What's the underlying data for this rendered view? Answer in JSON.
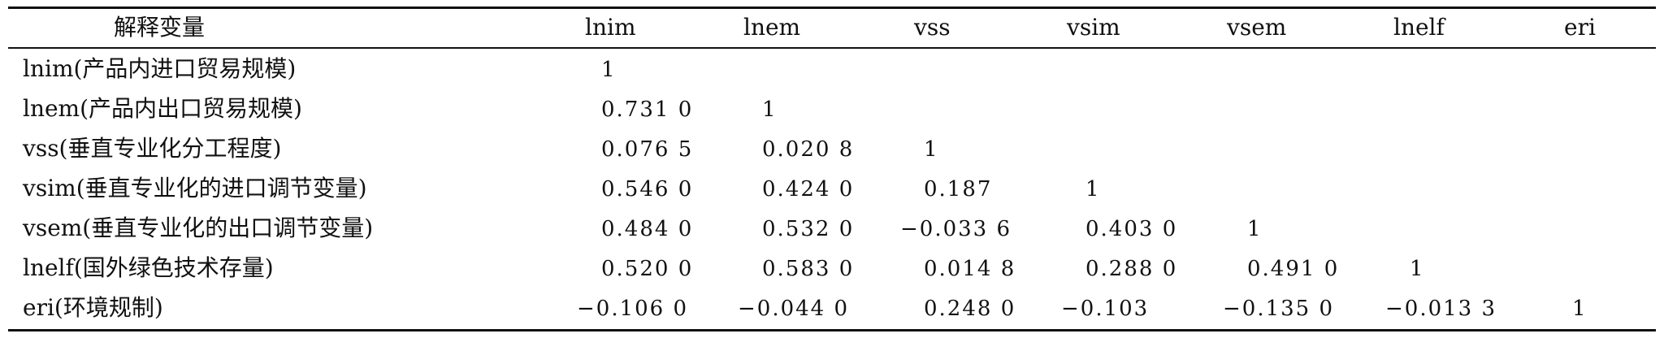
{
  "table": {
    "header": {
      "label": "解释变量",
      "columns": [
        "lnim",
        "lnem",
        "vss",
        "vsim",
        "vsem",
        "lnelf",
        "eri"
      ]
    },
    "rows": [
      {
        "label": "lnim(产品内进口贸易规模)",
        "values": [
          "1",
          "",
          "",
          "",
          "",
          "",
          ""
        ]
      },
      {
        "label": "lnem(产品内出口贸易规模)",
        "values": [
          "0.731 0",
          "1",
          "",
          "",
          "",
          "",
          ""
        ]
      },
      {
        "label": "vss(垂直专业化分工程度)",
        "values": [
          "0.076 5",
          "0.020 8",
          "1",
          "",
          "",
          "",
          ""
        ]
      },
      {
        "label": "vsim(垂直专业化的进口调节变量)",
        "values": [
          "0.546 0",
          "0.424 0",
          "0.187",
          "1",
          "",
          "",
          ""
        ]
      },
      {
        "label": "vsem(垂直专业化的出口调节变量)",
        "values": [
          "0.484 0",
          "0.532 0",
          "−0.033 6",
          "0.403 0",
          "1",
          "",
          ""
        ]
      },
      {
        "label": "lnelf(国外绿色技术存量)",
        "values": [
          "0.520 0",
          "0.583 0",
          "0.014 8",
          "0.288 0",
          "0.491 0",
          "1",
          ""
        ]
      },
      {
        "label": "eri(环境规制)",
        "values": [
          "−0.106 0",
          "−0.044 0",
          "0.248 0",
          "−0.103",
          "−0.135 0",
          "−0.013 3",
          "1"
        ]
      }
    ]
  }
}
